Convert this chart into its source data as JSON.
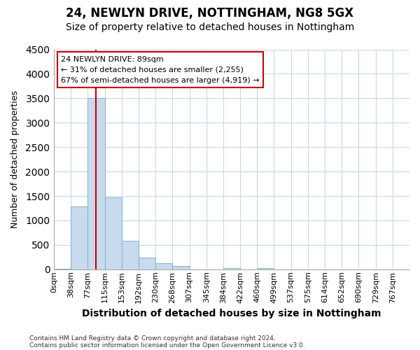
{
  "title1": "24, NEWLYN DRIVE, NOTTINGHAM, NG8 5GX",
  "title2": "Size of property relative to detached houses in Nottingham",
  "xlabel": "Distribution of detached houses by size in Nottingham",
  "ylabel": "Number of detached properties",
  "footnote1": "Contains HM Land Registry data © Crown copyright and database right 2024.",
  "footnote2": "Contains public sector information licensed under the Open Government Licence v3.0.",
  "bin_labels": [
    "0sqm",
    "38sqm",
    "77sqm",
    "115sqm",
    "153sqm",
    "192sqm",
    "230sqm",
    "268sqm",
    "307sqm",
    "345sqm",
    "384sqm",
    "422sqm",
    "460sqm",
    "499sqm",
    "537sqm",
    "575sqm",
    "614sqm",
    "652sqm",
    "690sqm",
    "729sqm",
    "767sqm"
  ],
  "bar_heights": [
    10,
    1280,
    3500,
    1470,
    580,
    240,
    130,
    75,
    0,
    0,
    30,
    0,
    30,
    0,
    0,
    0,
    0,
    0,
    0,
    0,
    0
  ],
  "bar_color": "#c8daed",
  "bar_edge_color": "#7aaac8",
  "vline_x_index": 2,
  "vline_color": "#cc0000",
  "ylim": [
    0,
    4500
  ],
  "yticks": [
    0,
    500,
    1000,
    1500,
    2000,
    2500,
    3000,
    3500,
    4000,
    4500
  ],
  "annotation_line1": "24 NEWLYN DRIVE: 89sqm",
  "annotation_line2": "← 31% of detached houses are smaller (2,255)",
  "annotation_line3": "67% of semi-detached houses are larger (4,919) →",
  "annotation_box_color": "white",
  "annotation_box_edge_color": "#cc0000",
  "plot_bg_color": "white",
  "fig_bg_color": "white",
  "grid_color": "#c5d8ed",
  "title1_fontsize": 12,
  "title2_fontsize": 10,
  "ylabel_fontsize": 9,
  "xlabel_fontsize": 10,
  "tick_fontsize": 8
}
